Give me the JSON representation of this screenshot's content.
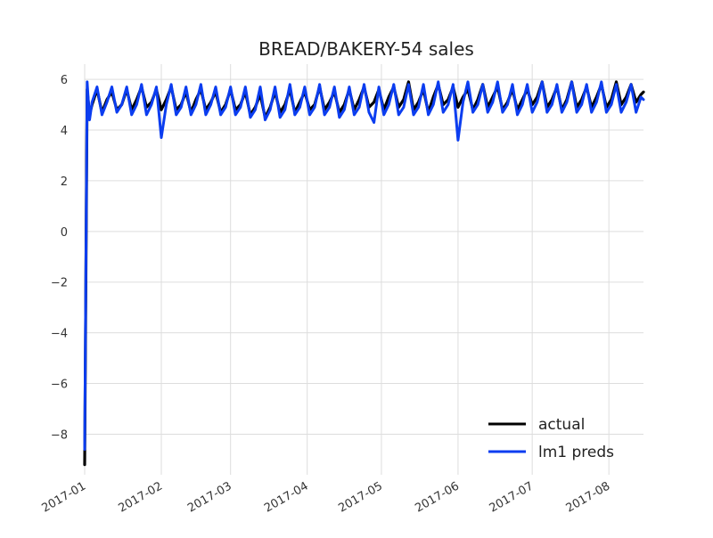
{
  "chart_data": {
    "type": "line",
    "title": "BREAD/BAKERY-54 sales",
    "xlabel": "",
    "ylabel": "",
    "xlim": [
      "2017-01-01",
      "2017-08-15"
    ],
    "ylim": [
      -9.6,
      6.6
    ],
    "x_ticks": [
      "2017-01",
      "2017-02",
      "2017-03",
      "2017-04",
      "2017-05",
      "2017-06",
      "2017-07",
      "2017-08"
    ],
    "x_tick_dates": [
      "2017-01-01",
      "2017-02-01",
      "2017-03-01",
      "2017-04-01",
      "2017-05-01",
      "2017-06-01",
      "2017-07-01",
      "2017-08-01"
    ],
    "y_ticks": [
      6,
      4,
      2,
      0,
      -2,
      -4,
      -6,
      -8
    ],
    "y_tick_labels": [
      "6",
      "4",
      "2",
      "0",
      "−2",
      "−4",
      "−6",
      "−8"
    ],
    "grid": true,
    "legend_position": "bottom-right",
    "series": [
      {
        "name": "actual",
        "color": "#000000",
        "x": [
          "2017-01-01",
          "2017-01-02",
          "2017-01-03",
          "2017-01-04",
          "2017-01-06",
          "2017-01-08",
          "2017-01-10",
          "2017-01-12",
          "2017-01-14",
          "2017-01-16",
          "2017-01-18",
          "2017-01-20",
          "2017-01-22",
          "2017-01-24",
          "2017-01-26",
          "2017-01-28",
          "2017-01-30",
          "2017-02-01",
          "2017-02-03",
          "2017-02-05",
          "2017-02-07",
          "2017-02-09",
          "2017-02-11",
          "2017-02-13",
          "2017-02-15",
          "2017-02-17",
          "2017-02-19",
          "2017-02-21",
          "2017-02-23",
          "2017-02-25",
          "2017-02-27",
          "2017-03-01",
          "2017-03-03",
          "2017-03-05",
          "2017-03-07",
          "2017-03-09",
          "2017-03-11",
          "2017-03-13",
          "2017-03-15",
          "2017-03-17",
          "2017-03-19",
          "2017-03-21",
          "2017-03-23",
          "2017-03-25",
          "2017-03-27",
          "2017-03-29",
          "2017-03-31",
          "2017-04-02",
          "2017-04-04",
          "2017-04-06",
          "2017-04-08",
          "2017-04-10",
          "2017-04-12",
          "2017-04-14",
          "2017-04-16",
          "2017-04-18",
          "2017-04-20",
          "2017-04-22",
          "2017-04-24",
          "2017-04-26",
          "2017-04-28",
          "2017-04-30",
          "2017-05-02",
          "2017-05-04",
          "2017-05-06",
          "2017-05-08",
          "2017-05-10",
          "2017-05-12",
          "2017-05-14",
          "2017-05-16",
          "2017-05-18",
          "2017-05-20",
          "2017-05-22",
          "2017-05-24",
          "2017-05-26",
          "2017-05-28",
          "2017-05-30",
          "2017-06-01",
          "2017-06-03",
          "2017-06-05",
          "2017-06-07",
          "2017-06-09",
          "2017-06-11",
          "2017-06-13",
          "2017-06-15",
          "2017-06-17",
          "2017-06-19",
          "2017-06-21",
          "2017-06-23",
          "2017-06-25",
          "2017-06-27",
          "2017-06-29",
          "2017-07-01",
          "2017-07-03",
          "2017-07-05",
          "2017-07-07",
          "2017-07-09",
          "2017-07-11",
          "2017-07-13",
          "2017-07-15",
          "2017-07-17",
          "2017-07-19",
          "2017-07-21",
          "2017-07-23",
          "2017-07-25",
          "2017-07-27",
          "2017-07-29",
          "2017-07-31",
          "2017-08-02",
          "2017-08-04",
          "2017-08-06",
          "2017-08-08",
          "2017-08-10",
          "2017-08-12",
          "2017-08-14",
          "2017-08-15"
        ],
        "y": [
          -9.2,
          5.6,
          4.6,
          5.0,
          5.6,
          4.7,
          5.2,
          5.5,
          4.8,
          5.0,
          5.6,
          4.8,
          5.2,
          5.7,
          4.9,
          5.1,
          5.6,
          4.8,
          5.2,
          5.7,
          4.8,
          5.0,
          5.5,
          4.7,
          5.2,
          5.6,
          4.8,
          5.1,
          5.5,
          4.7,
          5.0,
          5.6,
          4.8,
          5.0,
          5.5,
          4.6,
          4.9,
          5.4,
          4.5,
          4.9,
          5.5,
          4.7,
          5.0,
          5.6,
          4.7,
          5.1,
          5.5,
          4.8,
          5.0,
          5.7,
          4.8,
          5.1,
          5.5,
          4.7,
          5.0,
          5.6,
          4.8,
          5.2,
          5.7,
          4.9,
          5.1,
          5.6,
          4.8,
          5.3,
          5.7,
          4.9,
          5.2,
          5.9,
          4.8,
          5.1,
          5.6,
          4.7,
          5.3,
          5.8,
          5.0,
          5.2,
          5.7,
          4.9,
          5.3,
          5.6,
          4.8,
          5.2,
          5.8,
          4.9,
          5.3,
          5.7,
          4.8,
          5.1,
          5.6,
          4.8,
          5.2,
          5.6,
          5.0,
          5.3,
          5.9,
          4.9,
          5.2,
          5.7,
          4.8,
          5.2,
          5.9,
          4.9,
          5.2,
          5.7,
          4.9,
          5.3,
          5.8,
          4.9,
          5.2,
          5.9,
          5.0,
          5.3,
          5.8,
          5.1,
          5.4,
          5.5
        ],
        "line_width": 3.2
      },
      {
        "name": "lm1 preds",
        "color": "#0b3df0",
        "x": [
          "2017-01-01",
          "2017-01-02",
          "2017-01-03",
          "2017-01-04",
          "2017-01-06",
          "2017-01-08",
          "2017-01-10",
          "2017-01-12",
          "2017-01-14",
          "2017-01-16",
          "2017-01-18",
          "2017-01-20",
          "2017-01-22",
          "2017-01-24",
          "2017-01-26",
          "2017-01-28",
          "2017-01-30",
          "2017-02-01",
          "2017-02-03",
          "2017-02-05",
          "2017-02-07",
          "2017-02-09",
          "2017-02-11",
          "2017-02-13",
          "2017-02-15",
          "2017-02-17",
          "2017-02-19",
          "2017-02-21",
          "2017-02-23",
          "2017-02-25",
          "2017-02-27",
          "2017-03-01",
          "2017-03-03",
          "2017-03-05",
          "2017-03-07",
          "2017-03-09",
          "2017-03-11",
          "2017-03-13",
          "2017-03-15",
          "2017-03-17",
          "2017-03-19",
          "2017-03-21",
          "2017-03-23",
          "2017-03-25",
          "2017-03-27",
          "2017-03-29",
          "2017-03-31",
          "2017-04-02",
          "2017-04-04",
          "2017-04-06",
          "2017-04-08",
          "2017-04-10",
          "2017-04-12",
          "2017-04-14",
          "2017-04-16",
          "2017-04-18",
          "2017-04-20",
          "2017-04-22",
          "2017-04-24",
          "2017-04-26",
          "2017-04-28",
          "2017-04-30",
          "2017-05-02",
          "2017-05-04",
          "2017-05-06",
          "2017-05-08",
          "2017-05-10",
          "2017-05-12",
          "2017-05-14",
          "2017-05-16",
          "2017-05-18",
          "2017-05-20",
          "2017-05-22",
          "2017-05-24",
          "2017-05-26",
          "2017-05-28",
          "2017-05-30",
          "2017-06-01",
          "2017-06-03",
          "2017-06-05",
          "2017-06-07",
          "2017-06-09",
          "2017-06-11",
          "2017-06-13",
          "2017-06-15",
          "2017-06-17",
          "2017-06-19",
          "2017-06-21",
          "2017-06-23",
          "2017-06-25",
          "2017-06-27",
          "2017-06-29",
          "2017-07-01",
          "2017-07-03",
          "2017-07-05",
          "2017-07-07",
          "2017-07-09",
          "2017-07-11",
          "2017-07-13",
          "2017-07-15",
          "2017-07-17",
          "2017-07-19",
          "2017-07-21",
          "2017-07-23",
          "2017-07-25",
          "2017-07-27",
          "2017-07-29",
          "2017-07-31",
          "2017-08-02",
          "2017-08-04",
          "2017-08-06",
          "2017-08-08",
          "2017-08-10",
          "2017-08-12",
          "2017-08-14",
          "2017-08-15"
        ],
        "y": [
          -8.6,
          5.9,
          4.4,
          5.1,
          5.7,
          4.6,
          5.1,
          5.7,
          4.7,
          5.0,
          5.7,
          4.6,
          5.0,
          5.8,
          4.6,
          5.0,
          5.7,
          3.7,
          5.0,
          5.8,
          4.6,
          4.9,
          5.7,
          4.6,
          5.0,
          5.8,
          4.6,
          5.0,
          5.7,
          4.6,
          4.9,
          5.7,
          4.6,
          4.9,
          5.7,
          4.5,
          4.8,
          5.7,
          4.4,
          4.8,
          5.7,
          4.5,
          4.8,
          5.8,
          4.6,
          4.9,
          5.7,
          4.6,
          4.9,
          5.8,
          4.6,
          4.9,
          5.7,
          4.5,
          4.8,
          5.7,
          4.6,
          4.9,
          5.8,
          4.7,
          4.3,
          5.7,
          4.6,
          5.0,
          5.8,
          4.6,
          4.9,
          5.8,
          4.6,
          4.9,
          5.8,
          4.6,
          5.0,
          5.9,
          4.7,
          5.0,
          5.8,
          3.6,
          5.1,
          5.9,
          4.7,
          5.0,
          5.8,
          4.7,
          5.1,
          5.9,
          4.7,
          5.0,
          5.8,
          4.6,
          5.0,
          5.8,
          4.7,
          5.1,
          5.9,
          4.7,
          5.0,
          5.8,
          4.7,
          5.1,
          5.9,
          4.7,
          5.0,
          5.8,
          4.7,
          5.1,
          5.9,
          4.7,
          5.0,
          5.8,
          4.7,
          5.1,
          5.8,
          4.7,
          5.3,
          5.2
        ],
        "line_width": 3
      }
    ]
  }
}
